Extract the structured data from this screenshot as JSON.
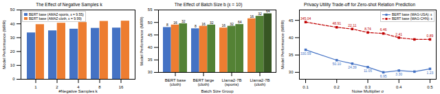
{
  "chart_data": [
    {
      "type": "bar",
      "title": "The Effect of Negative Samples k",
      "xlabel": "#Negative Samples k",
      "ylabel": "Model Performance (MRR)",
      "categories": [
        "1",
        "2",
        "4",
        "8",
        "16"
      ],
      "series": [
        {
          "name": "BERT base (AMAZ-sports, ε = 9.55)",
          "color": "#4472c4",
          "values": [
            33.5,
            35.0,
            36.2,
            36.8,
            37.0
          ]
        },
        {
          "name": "BERT base (AMAZ-cloth, ε = 9.99)",
          "color": "#ed7d31",
          "values": [
            39.5,
            40.5,
            41.0,
            41.8,
            42.0
          ]
        }
      ],
      "ylim": [
        0,
        50
      ],
      "yticks": [
        0,
        10,
        20,
        30,
        40,
        50
      ],
      "legend": "upper left"
    },
    {
      "type": "bar",
      "title": "The Effect of Batch Size b (ε = 10)",
      "xlabel": "Batch Size Group",
      "ylabel": "Model Performance (MRR)",
      "categories": [
        "BERT base\n(cloth)",
        "BERT large\n(cloth)",
        "Llama2-7B\n(sports)",
        "Llama2-7B\n(cloth)"
      ],
      "bar_labels": [
        [
          "8",
          "16",
          "32"
        ],
        [
          "8",
          "16",
          "32"
        ],
        [
          "16",
          "32",
          "64"
        ],
        [
          "16",
          "32",
          "64"
        ]
      ],
      "values": [
        [
          48.0,
          49.0,
          49.5
        ],
        [
          47.5,
          48.5,
          49.0
        ],
        [
          47.8,
          48.5,
          49.2
        ],
        [
          51.5,
          52.5,
          53.5
        ]
      ],
      "colors": [
        [
          "#4472c4",
          "#ed7d31",
          "#548235"
        ],
        [
          "#4472c4",
          "#ed7d31",
          "#548235"
        ],
        [
          "#ed7d31",
          "#548235",
          "#538135"
        ],
        [
          "#ed7d31",
          "#538135",
          "#375623"
        ]
      ],
      "ylim": [
        30,
        55
      ],
      "yticks": [
        30,
        35,
        40,
        45,
        50,
        55
      ]
    },
    {
      "type": "line",
      "title": "Privacy Utility Trade-off for Zero-shot Relation Prediction",
      "xlabel": "Noise Multiplier σ",
      "ylabel": "Model Performance (MRR)",
      "series": [
        {
          "name": "BERT base (MAG-USA): ε",
          "color": "#4472c4",
          "line_style": "solid",
          "marker": "square",
          "x": [
            0.1,
            0.2,
            0.25,
            0.3,
            0.35,
            0.4,
            0.45,
            0.5
          ],
          "values": [
            36.5,
            33.5,
            32.5,
            31.5,
            30.0,
            30.5,
            30.2,
            31.0
          ],
          "point_labels": [
            "330.59",
            "50.10",
            "24.39",
            "11.05",
            "6.95",
            "3.30",
            null,
            "1.23"
          ]
        },
        {
          "name": "BERT base (MAG-CHN): ε",
          "color": "#c00000",
          "line_style": "dashed",
          "marker": "square",
          "x": [
            0.1,
            0.2,
            0.25,
            0.3,
            0.35,
            0.4,
            0.45,
            0.5
          ],
          "values": [
            44.5,
            43.0,
            42.5,
            41.5,
            41.2,
            40.0,
            39.5,
            39.5
          ],
          "point_labels": [
            "345.04",
            "48.91",
            "22.11",
            "8.74",
            "6.46",
            "2.41",
            null,
            "0.89"
          ]
        }
      ],
      "xlim": [
        0.08,
        0.52
      ],
      "xticks": [
        0.1,
        0.2,
        0.3,
        0.4,
        0.5
      ],
      "ylim": [
        28,
        48
      ],
      "yticks": [
        30,
        35,
        40,
        45
      ],
      "legend": "upper right"
    }
  ]
}
